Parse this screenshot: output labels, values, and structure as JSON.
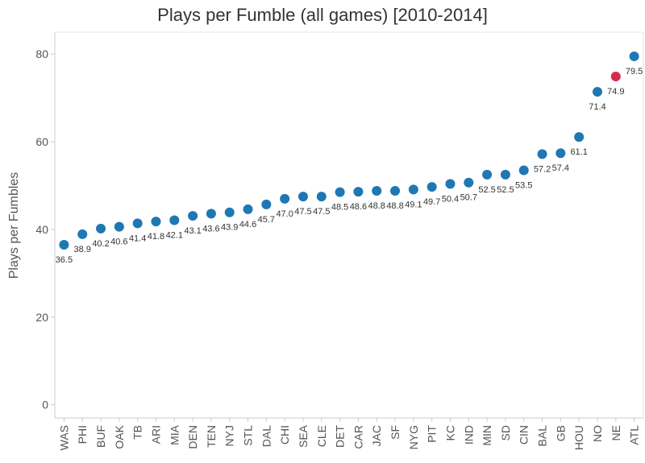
{
  "chart_data": {
    "type": "scatter",
    "title": "Plays per Fumble (all games) [2010-2014]",
    "xlabel": "",
    "ylabel": "Plays per Fumbles",
    "ylim": [
      -3,
      85
    ],
    "yticks": [
      0,
      20,
      40,
      60,
      80
    ],
    "grid": false,
    "categories": [
      "WAS",
      "PHI",
      "BUF",
      "OAK",
      "TB",
      "ARI",
      "MIA",
      "DEN",
      "TEN",
      "NYJ",
      "STL",
      "DAL",
      "CHI",
      "SEA",
      "CLE",
      "DET",
      "CAR",
      "JAC",
      "SF",
      "NYG",
      "PIT",
      "KC",
      "IND",
      "MIN",
      "SD",
      "CIN",
      "BAL",
      "GB",
      "HOU",
      "NO",
      "NE",
      "ATL"
    ],
    "values": [
      36.5,
      38.9,
      40.2,
      40.6,
      41.4,
      41.8,
      42.1,
      43.1,
      43.6,
      43.9,
      44.6,
      45.7,
      47.0,
      47.5,
      47.5,
      48.5,
      48.6,
      48.8,
      48.8,
      49.1,
      49.7,
      50.4,
      50.7,
      52.5,
      52.5,
      53.5,
      57.2,
      57.4,
      61.1,
      71.4,
      74.9,
      79.5
    ],
    "labels": [
      "36.5",
      "38.9",
      "40.2",
      "40.6",
      "41.4",
      "41.8",
      "42.1",
      "43.1",
      "43.6",
      "43.9",
      "44.6",
      "45.7",
      "47.0",
      "47.5",
      "47.5",
      "48.5",
      "48.6",
      "48.8",
      "48.8",
      "49.1",
      "49.7",
      "50.4",
      "50.7",
      "52.5",
      "52.5",
      "53.5",
      "57.2",
      "57.4",
      "61.1",
      "71.4",
      "74.9",
      "79.5"
    ],
    "highlight": "NE",
    "colors": {
      "default": "#1f77b4",
      "highlight": "#d62b4b"
    }
  }
}
